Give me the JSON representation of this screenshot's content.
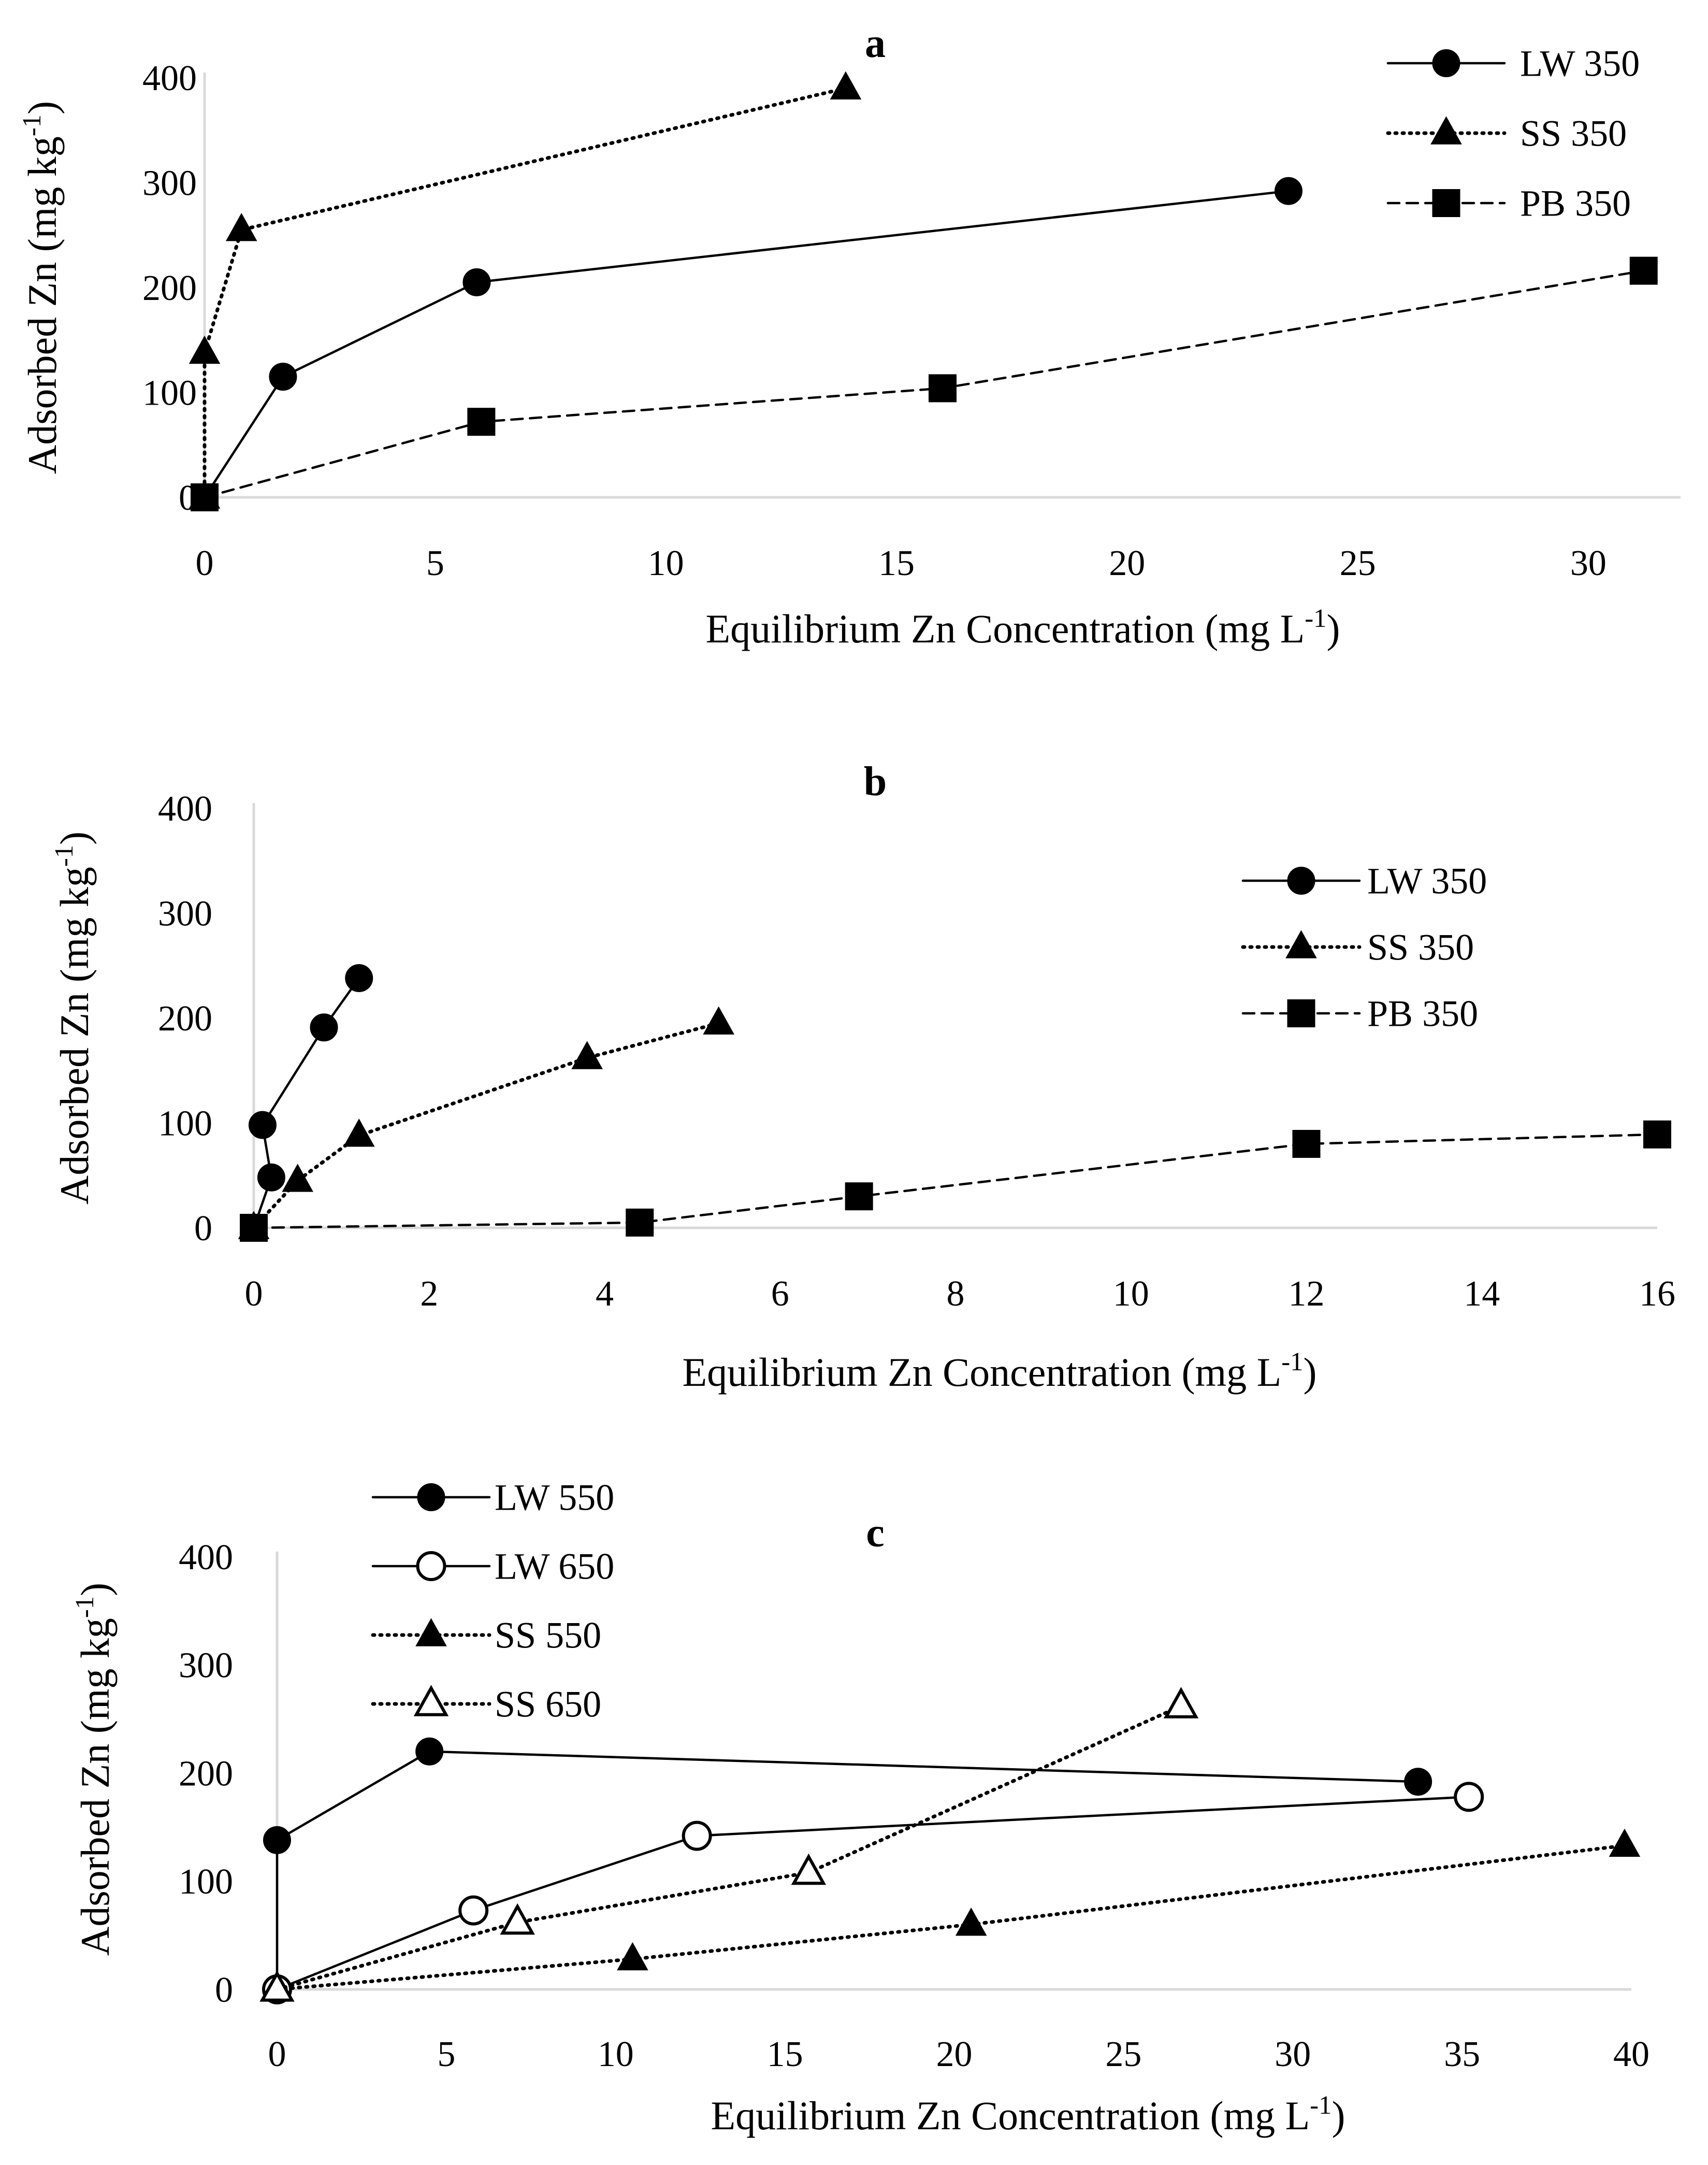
{
  "charts": [
    {
      "id": "a",
      "panel_label": "a",
      "xlabel_main": "Equilibrium Zn Concentration (mg L",
      "xlabel_sup": "-1",
      "xlabel_end": ")",
      "ylabel_main": "Adsorbed Zn (mg kg",
      "ylabel_sup": "-1",
      "ylabel_end": ")"
    },
    {
      "id": "b",
      "panel_label": "b",
      "xlabel_main": "Equilibrium Zn Concentration (mg L",
      "xlabel_sup": "-1",
      "xlabel_end": ")",
      "ylabel_main": "Adsorbed Zn (mg kg",
      "ylabel_sup": "-1",
      "ylabel_end": ")"
    },
    {
      "id": "c",
      "panel_label": "c",
      "xlabel_main": "Equilibrium Zn Concentration (mg L",
      "xlabel_sup": "-1",
      "xlabel_end": ")",
      "ylabel_main": "Adsorbed Zn (mg kg",
      "ylabel_sup": "-1",
      "ylabel_end": ")"
    }
  ],
  "chart_data": [
    {
      "type": "line",
      "panel": "a",
      "xlim": [
        0,
        32
      ],
      "ylim": [
        0,
        400
      ],
      "xticks": [
        0,
        5,
        10,
        15,
        20,
        25,
        30
      ],
      "yticks": [
        0,
        100,
        200,
        300,
        400
      ],
      "legend_position": "top-right",
      "series": [
        {
          "name": "LW 350",
          "line": "solid",
          "marker": "circle",
          "fill": "filled",
          "points": [
            [
              0,
              0
            ],
            [
              1.7,
              115
            ],
            [
              5.9,
              205
            ],
            [
              23.5,
              292
            ]
          ]
        },
        {
          "name": "SS 350",
          "line": "dotted",
          "marker": "triangle",
          "fill": "filled",
          "points": [
            [
              0,
              0
            ],
            [
              0,
              138
            ],
            [
              0.8,
              255
            ],
            [
              13.9,
              390
            ]
          ]
        },
        {
          "name": "PB 350",
          "line": "dashed",
          "marker": "square",
          "fill": "filled",
          "points": [
            [
              0,
              0
            ],
            [
              6,
              72
            ],
            [
              16,
              104
            ],
            [
              31.2,
              216
            ]
          ]
        }
      ]
    },
    {
      "type": "line",
      "panel": "b",
      "xlim": [
        0,
        16
      ],
      "ylim": [
        0,
        400
      ],
      "xticks": [
        0,
        2,
        4,
        6,
        8,
        10,
        12,
        14,
        16
      ],
      "yticks": [
        0,
        100,
        200,
        300,
        400
      ],
      "legend_position": "right",
      "series": [
        {
          "name": "LW 350",
          "line": "solid",
          "marker": "circle",
          "fill": "filled",
          "points": [
            [
              0,
              0
            ],
            [
              0.2,
              48
            ],
            [
              0.1,
              98
            ],
            [
              0.8,
              191
            ],
            [
              1.2,
              238
            ]
          ]
        },
        {
          "name": "SS 350",
          "line": "dotted",
          "marker": "triangle",
          "fill": "filled",
          "points": [
            [
              0,
              0
            ],
            [
              0.5,
              45
            ],
            [
              1.2,
              88
            ],
            [
              3.8,
              162
            ],
            [
              5.3,
              195
            ]
          ]
        },
        {
          "name": "PB 350",
          "line": "dashed",
          "marker": "square",
          "fill": "filled",
          "points": [
            [
              0,
              0
            ],
            [
              4.4,
              5
            ],
            [
              6.9,
              30
            ],
            [
              12,
              80
            ],
            [
              16,
              89
            ]
          ]
        }
      ]
    },
    {
      "type": "line",
      "panel": "c",
      "xlim": [
        0,
        40
      ],
      "ylim": [
        0,
        400
      ],
      "xticks": [
        0,
        5,
        10,
        15,
        20,
        25,
        30,
        35,
        40
      ],
      "yticks": [
        0,
        100,
        200,
        300,
        400
      ],
      "legend_position": "top-left",
      "series": [
        {
          "name": "LW 550",
          "line": "solid",
          "marker": "circle",
          "fill": "filled",
          "points": [
            [
              0,
              0
            ],
            [
              0,
              138
            ],
            [
              4.5,
              220
            ],
            [
              33.7,
              192
            ]
          ]
        },
        {
          "name": "LW 650",
          "line": "solid",
          "marker": "circle",
          "fill": "open",
          "points": [
            [
              0,
              0
            ],
            [
              5.8,
              73
            ],
            [
              12.4,
              142
            ],
            [
              35.2,
              178
            ]
          ]
        },
        {
          "name": "SS 550",
          "line": "dotted",
          "marker": "triangle",
          "fill": "filled",
          "points": [
            [
              0,
              0
            ],
            [
              10.5,
              28
            ],
            [
              20.5,
              60
            ],
            [
              39.8,
              133
            ]
          ]
        },
        {
          "name": "SS 650",
          "line": "dotted",
          "marker": "triangle",
          "fill": "open",
          "points": [
            [
              0,
              0
            ],
            [
              7.1,
              62
            ],
            [
              15.7,
              108
            ],
            [
              26.7,
              262
            ]
          ]
        }
      ]
    }
  ]
}
